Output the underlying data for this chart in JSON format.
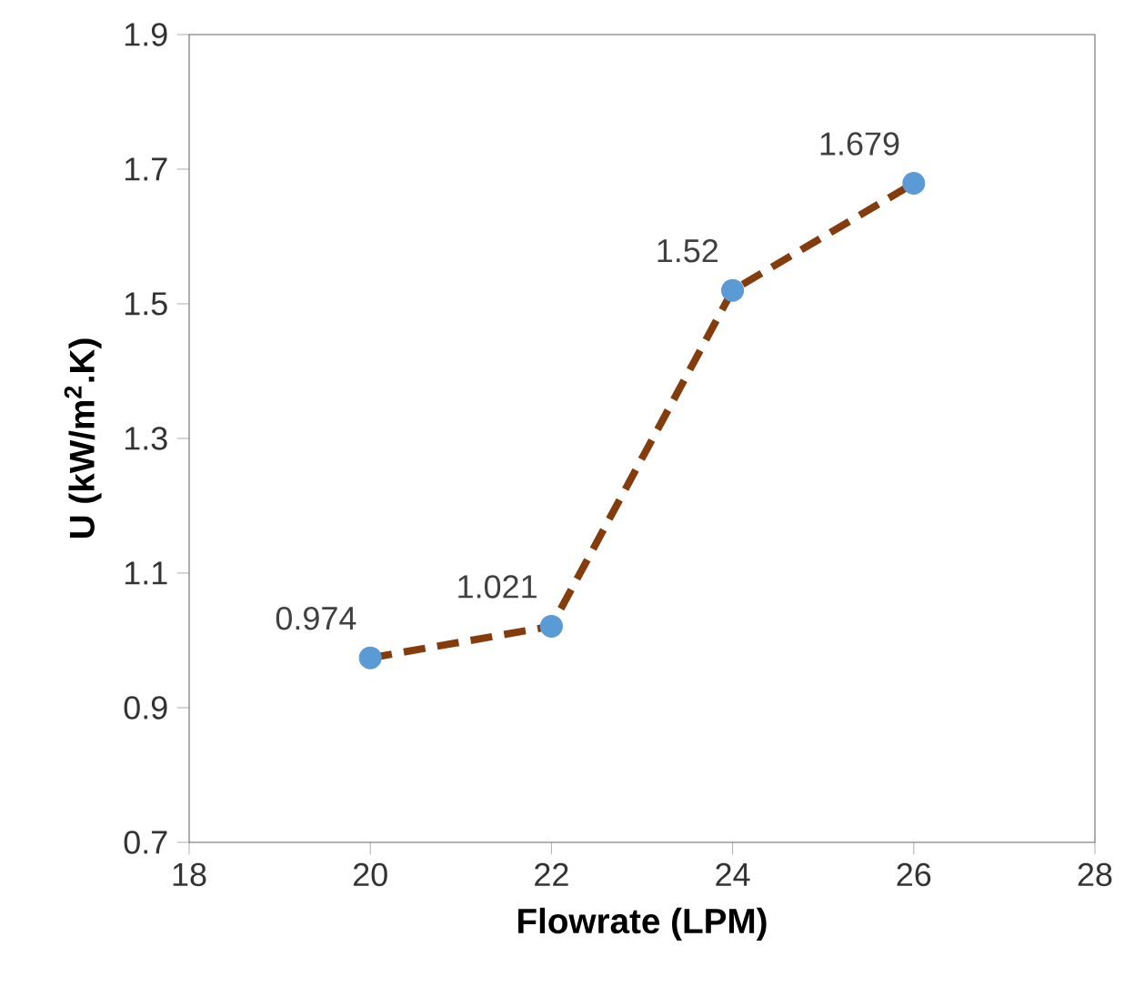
{
  "chart_data": {
    "type": "line",
    "xlabel": "Flowrate (LPM)",
    "ylabel": "U (kW/m$^{2}$.K)",
    "x": [
      20,
      22,
      24,
      26
    ],
    "series": [
      {
        "color": "#843c0c",
        "colors": [
          "#5b9bd5",
          "#5b9bd5",
          "#5b9bd5",
          "#5b9bd5"
        ],
        "values": [
          0.974,
          1.021,
          1.52,
          1.679
        ]
      }
    ],
    "xlim": [
      18,
      28
    ],
    "xticks": [
      18,
      20,
      22,
      24,
      26,
      28
    ],
    "ylim": [
      0.7,
      1.9
    ],
    "yticks": [
      0.7,
      0.9,
      1.1,
      1.3,
      1.5,
      1.7,
      1.9
    ],
    "grid": false,
    "marker": "circle",
    "line_style": "dashed",
    "data_labels": true
  }
}
